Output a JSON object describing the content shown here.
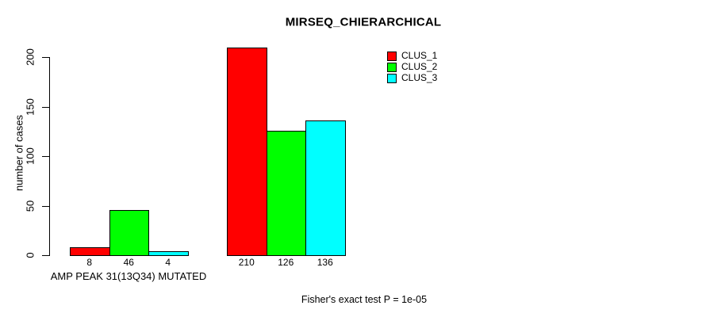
{
  "chart_data": {
    "type": "bar",
    "title": "MIRSEQ_CHIERARCHICAL",
    "ylabel": "number of cases",
    "xlabel": "",
    "ylim": [
      0,
      200
    ],
    "yticks": [
      0,
      50,
      100,
      150,
      200
    ],
    "grid": false,
    "legend_position": "top-right",
    "categories": [
      "AMP PEAK 31(13Q34) MUTATED",
      ""
    ],
    "series": [
      {
        "name": "CLUS_1",
        "color": "#ff0000",
        "values": [
          8,
          210
        ]
      },
      {
        "name": "CLUS_2",
        "color": "#00ff00",
        "values": [
          46,
          126
        ]
      },
      {
        "name": "CLUS_3",
        "color": "#00ffff",
        "values": [
          4,
          136
        ]
      }
    ],
    "bar_value_labels": [
      [
        "8",
        "46",
        "4"
      ],
      [
        "210",
        "126",
        "136"
      ]
    ],
    "footnote": "Fisher's exact test P = 1e-05"
  },
  "colors": {
    "background": "#ffffff",
    "axis": "#000000",
    "text": "#000000"
  }
}
